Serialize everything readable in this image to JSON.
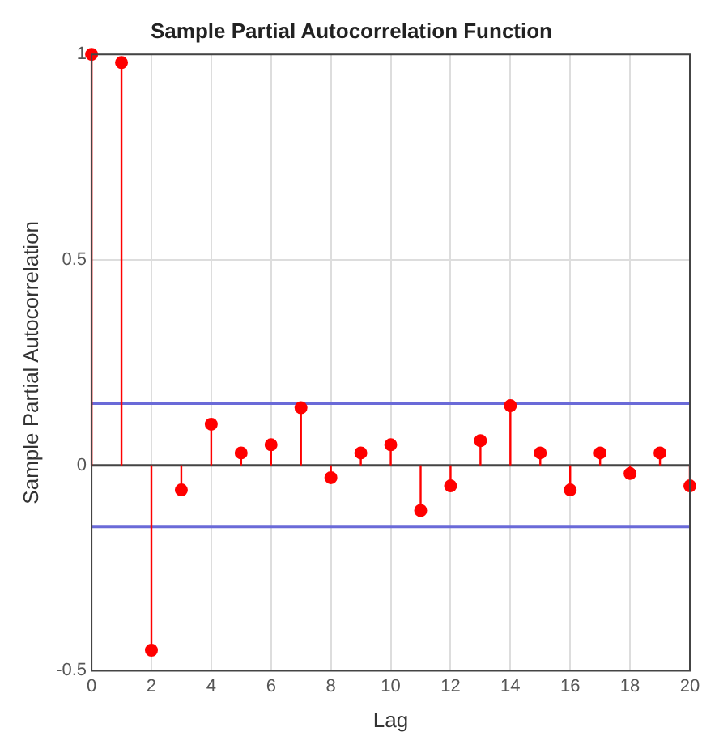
{
  "chart_data": {
    "type": "lollipop",
    "title": "Sample Partial Autocorrelation Function",
    "xlabel": "Lag",
    "ylabel": "Sample Partial Autocorrelation",
    "x": [
      0,
      1,
      2,
      3,
      4,
      5,
      6,
      7,
      8,
      9,
      10,
      11,
      12,
      13,
      14,
      15,
      16,
      17,
      18,
      19,
      20
    ],
    "series": [
      {
        "color": "#ff0000",
        "values": [
          1,
          0.98,
          -0.45,
          -0.06,
          0.1,
          0.03,
          0.05,
          0.14,
          -0.03,
          0.03,
          0.05,
          -0.11,
          -0.05,
          0.06,
          0.145,
          0.03,
          -0.06,
          0.03,
          -0.02,
          0.03,
          -0.05
        ]
      }
    ],
    "xlim": [
      0,
      20
    ],
    "xticks": [
      0,
      2,
      4,
      6,
      8,
      10,
      12,
      14,
      16,
      18,
      20
    ],
    "ylim": [
      -0.5,
      1
    ],
    "yticks": [
      -0.5,
      0,
      0.5,
      1
    ],
    "ref_lines": [
      {
        "axis": "y",
        "value": 0.15,
        "color": "#6a6ad8"
      },
      {
        "axis": "y",
        "value": -0.15,
        "color": "#6a6ad8"
      },
      {
        "axis": "y",
        "value": 0,
        "color": "#444444"
      }
    ],
    "grid": true,
    "marker": "circle",
    "legend": false
  }
}
